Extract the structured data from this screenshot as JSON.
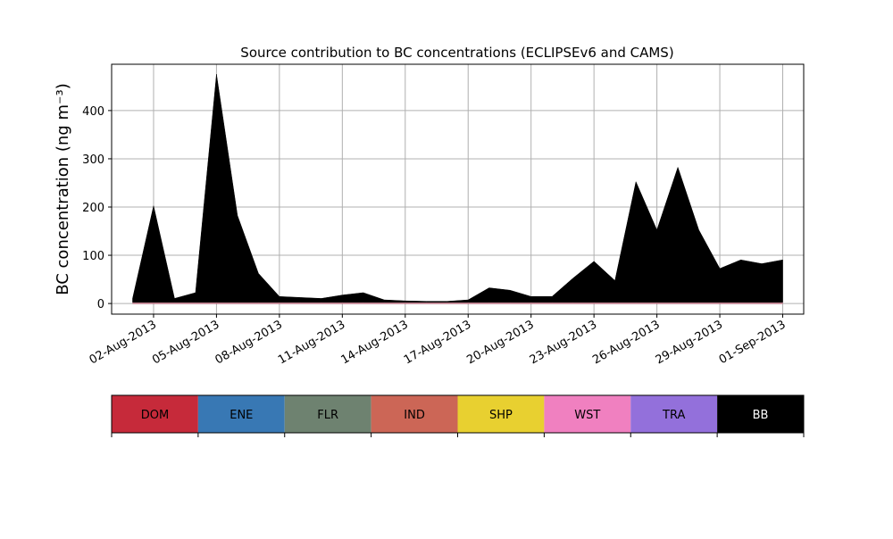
{
  "chart_data": {
    "type": "stacked_area",
    "title": "Source contribution to BC concentrations (ECLIPSEv6 and CAMS)",
    "y_label": "BC concentration (ng m⁻³)",
    "x": [
      "2013-08-01",
      "2013-08-02",
      "2013-08-03",
      "2013-08-04",
      "2013-08-05",
      "2013-08-06",
      "2013-08-07",
      "2013-08-08",
      "2013-08-09",
      "2013-08-10",
      "2013-08-11",
      "2013-08-12",
      "2013-08-13",
      "2013-08-14",
      "2013-08-15",
      "2013-08-16",
      "2013-08-17",
      "2013-08-18",
      "2013-08-19",
      "2013-08-20",
      "2013-08-21",
      "2013-08-22",
      "2013-08-23",
      "2013-08-24",
      "2013-08-25",
      "2013-08-26",
      "2013-08-27",
      "2013-08-28",
      "2013-08-29",
      "2013-08-30",
      "2013-08-31",
      "2013-09-01"
    ],
    "series": [
      {
        "name": "DOM",
        "color": "#c62a3a",
        "values": [
          0.5,
          0.5,
          0.5,
          0.5,
          0.5,
          0.5,
          0.5,
          0.5,
          0.5,
          0.5,
          0.5,
          0.5,
          0.5,
          0.5,
          0.5,
          0.5,
          0.5,
          0.5,
          0.5,
          0.5,
          0.5,
          0.5,
          0.5,
          0.5,
          0.5,
          0.5,
          0.5,
          0.5,
          0.5,
          0.5,
          0.5,
          0.5
        ]
      },
      {
        "name": "ENE",
        "color": "#3878b4",
        "values": [
          0.2,
          0.2,
          0.2,
          0.2,
          0.2,
          0.2,
          0.2,
          0.2,
          0.2,
          0.2,
          0.2,
          0.2,
          0.2,
          0.2,
          0.2,
          0.2,
          0.2,
          0.2,
          0.2,
          0.2,
          0.2,
          0.2,
          0.2,
          0.2,
          0.2,
          0.2,
          0.2,
          0.2,
          0.2,
          0.2,
          0.2,
          0.2
        ]
      },
      {
        "name": "FLR",
        "color": "#6e8270",
        "values": [
          0.3,
          0.3,
          0.3,
          0.3,
          0.3,
          0.3,
          0.3,
          0.3,
          0.3,
          0.3,
          0.3,
          0.3,
          0.3,
          0.3,
          0.3,
          0.3,
          0.3,
          0.3,
          0.3,
          0.3,
          0.3,
          0.3,
          0.3,
          0.3,
          0.3,
          0.3,
          0.3,
          0.3,
          0.3,
          0.3,
          0.3,
          0.3
        ]
      },
      {
        "name": "IND",
        "color": "#cc6656",
        "values": [
          0.3,
          0.3,
          0.3,
          0.3,
          0.3,
          0.3,
          0.3,
          0.3,
          0.3,
          0.3,
          0.3,
          0.3,
          0.3,
          0.3,
          0.3,
          0.3,
          0.3,
          0.3,
          0.3,
          0.3,
          0.3,
          0.3,
          0.3,
          0.3,
          0.3,
          0.3,
          0.3,
          0.3,
          0.3,
          0.3,
          0.3,
          0.3
        ]
      },
      {
        "name": "SHP",
        "color": "#e8d030",
        "values": [
          0.2,
          0.2,
          0.2,
          0.2,
          0.2,
          0.2,
          0.2,
          0.2,
          0.2,
          0.2,
          0.2,
          0.2,
          0.2,
          0.2,
          0.2,
          0.2,
          0.2,
          0.2,
          0.2,
          0.2,
          0.2,
          0.2,
          0.2,
          0.2,
          0.2,
          0.2,
          0.2,
          0.2,
          0.2,
          0.2,
          0.2,
          0.2
        ]
      },
      {
        "name": "WST",
        "color": "#f080c0",
        "values": [
          0.5,
          0.5,
          0.5,
          0.5,
          0.5,
          0.5,
          0.5,
          0.5,
          0.5,
          0.5,
          0.5,
          0.5,
          0.5,
          0.5,
          0.5,
          0.5,
          0.5,
          0.5,
          0.5,
          0.5,
          0.5,
          0.5,
          0.5,
          0.5,
          0.5,
          0.5,
          0.5,
          0.5,
          0.5,
          0.5,
          0.5,
          0.5
        ]
      },
      {
        "name": "TRA",
        "color": "#9370db",
        "values": [
          0.5,
          0.5,
          0.5,
          0.5,
          0.5,
          0.5,
          0.5,
          0.5,
          0.5,
          0.5,
          0.5,
          0.5,
          0.5,
          0.5,
          0.5,
          0.5,
          0.5,
          0.5,
          0.5,
          0.5,
          0.5,
          0.5,
          0.5,
          0.5,
          0.5,
          0.5,
          0.5,
          0.5,
          0.5,
          0.5,
          0.5,
          0.5
        ]
      },
      {
        "name": "BB",
        "color": "#000000",
        "values": [
          8,
          200,
          8,
          20,
          473,
          180,
          60,
          12,
          10,
          8,
          15,
          20,
          5,
          3,
          2,
          2,
          5,
          30,
          25,
          12,
          12,
          50,
          85,
          45,
          250,
          150,
          280,
          150,
          70,
          88,
          80,
          88
        ]
      }
    ],
    "xlim": [
      "2013-07-31",
      "2013-09-02"
    ],
    "xticks": [
      {
        "value": "2013-08-02",
        "label": "02-Aug-2013"
      },
      {
        "value": "2013-08-05",
        "label": "05-Aug-2013"
      },
      {
        "value": "2013-08-08",
        "label": "08-Aug-2013"
      },
      {
        "value": "2013-08-11",
        "label": "11-Aug-2013"
      },
      {
        "value": "2013-08-14",
        "label": "14-Aug-2013"
      },
      {
        "value": "2013-08-17",
        "label": "17-Aug-2013"
      },
      {
        "value": "2013-08-20",
        "label": "20-Aug-2013"
      },
      {
        "value": "2013-08-23",
        "label": "23-Aug-2013"
      },
      {
        "value": "2013-08-26",
        "label": "26-Aug-2013"
      },
      {
        "value": "2013-08-29",
        "label": "29-Aug-2013"
      },
      {
        "value": "2013-09-01",
        "label": "01-Sep-2013"
      }
    ],
    "ylim": [
      -22,
      496
    ],
    "yticks": [
      0,
      100,
      200,
      300,
      400
    ],
    "grid": true
  }
}
